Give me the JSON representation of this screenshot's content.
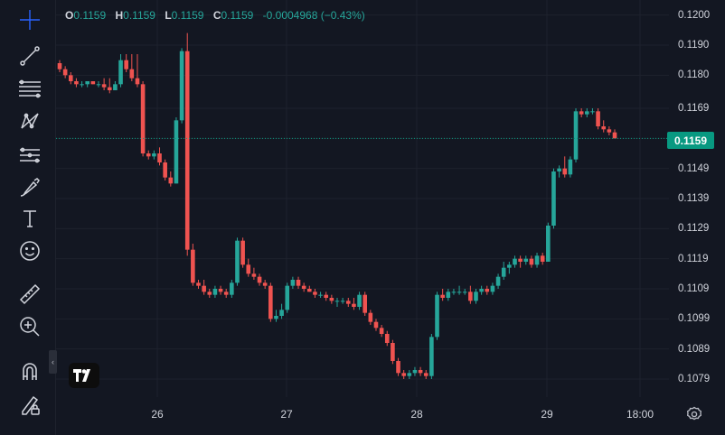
{
  "ohlc": {
    "o_label": "O",
    "o_value": "0.1159",
    "h_label": "H",
    "h_value": "0.1159",
    "l_label": "L",
    "l_value": "0.1159",
    "c_label": "C",
    "c_value": "0.1159",
    "change": "-0.0004968 (−0.43%)"
  },
  "price_axis": {
    "labels": [
      "0.1200",
      "0.1190",
      "0.1180",
      "0.1169",
      "0.1159",
      "0.1149",
      "0.1139",
      "0.1129",
      "0.1119",
      "0.1109",
      "0.1099",
      "0.1089",
      "0.1079"
    ],
    "current_price": "0.1159"
  },
  "time_axis": {
    "labels": [
      "26",
      "27",
      "28",
      "29",
      "18:00"
    ]
  },
  "toolbar": {
    "icons": [
      "crosshair-icon",
      "trend-line-icon",
      "fib-retracement-icon",
      "pattern-icon",
      "prediction-icon",
      "brush-icon",
      "text-icon",
      "emoji-icon",
      "ruler-icon",
      "zoom-in-icon",
      "magnet-icon",
      "lock-drawings-icon"
    ]
  },
  "colors": {
    "up": "#26a69a",
    "down": "#ef5350",
    "background": "#131722",
    "grid": "#1e222d",
    "price_line": "#089981"
  },
  "chart_data": {
    "type": "candlestick",
    "title": "",
    "ylim": [
      0.1073,
      0.1205
    ],
    "x_ticks": [
      "26",
      "27",
      "28",
      "29",
      "18:00"
    ],
    "candles": [
      [
        0.1184,
        0.1185,
        0.1181,
        0.1182
      ],
      [
        0.1182,
        0.1183,
        0.1179,
        0.118
      ],
      [
        0.118,
        0.1181,
        0.1177,
        0.1178
      ],
      [
        0.1178,
        0.1179,
        0.1176,
        0.1177
      ],
      [
        0.1177,
        0.1178,
        0.1176,
        0.1177
      ],
      [
        0.1177,
        0.1178,
        0.1176,
        0.1178
      ],
      [
        0.1178,
        0.1178,
        0.1177,
        0.1177
      ],
      [
        0.1177,
        0.1178,
        0.1176,
        0.1177
      ],
      [
        0.1177,
        0.1179,
        0.1175,
        0.1176
      ],
      [
        0.1176,
        0.1179,
        0.1174,
        0.1175
      ],
      [
        0.1175,
        0.1178,
        0.1175,
        0.1177
      ],
      [
        0.1177,
        0.1187,
        0.1176,
        0.1185
      ],
      [
        0.1185,
        0.1187,
        0.1181,
        0.1182
      ],
      [
        0.1182,
        0.1187,
        0.1178,
        0.1179
      ],
      [
        0.1179,
        0.1187,
        0.1176,
        0.1177
      ],
      [
        0.1177,
        0.1178,
        0.1153,
        0.1154
      ],
      [
        0.1154,
        0.1155,
        0.1152,
        0.1153
      ],
      [
        0.1153,
        0.1155,
        0.1152,
        0.1154
      ],
      [
        0.1154,
        0.1156,
        0.115,
        0.1151
      ],
      [
        0.1151,
        0.1152,
        0.1145,
        0.1146
      ],
      [
        0.1146,
        0.1148,
        0.1143,
        0.1144
      ],
      [
        0.1144,
        0.1166,
        0.1144,
        0.1165
      ],
      [
        0.1165,
        0.1189,
        0.1164,
        0.1188
      ],
      [
        0.1188,
        0.1194,
        0.112,
        0.1122
      ],
      [
        0.1122,
        0.1124,
        0.111,
        0.1111
      ],
      [
        0.1111,
        0.1112,
        0.1109,
        0.111
      ],
      [
        0.111,
        0.1112,
        0.1107,
        0.1108
      ],
      [
        0.1108,
        0.1109,
        0.1106,
        0.1107
      ],
      [
        0.1107,
        0.111,
        0.1106,
        0.1109
      ],
      [
        0.1109,
        0.111,
        0.1107,
        0.1108
      ],
      [
        0.1108,
        0.1109,
        0.1106,
        0.1107
      ],
      [
        0.1107,
        0.1112,
        0.1106,
        0.1111
      ],
      [
        0.1111,
        0.1126,
        0.111,
        0.1125
      ],
      [
        0.1125,
        0.1126,
        0.1116,
        0.1117
      ],
      [
        0.1117,
        0.1119,
        0.1113,
        0.1114
      ],
      [
        0.1114,
        0.1116,
        0.1112,
        0.1113
      ],
      [
        0.1113,
        0.1114,
        0.111,
        0.1111
      ],
      [
        0.1111,
        0.1112,
        0.1109,
        0.111
      ],
      [
        0.111,
        0.1111,
        0.1098,
        0.1099
      ],
      [
        0.1099,
        0.1102,
        0.1098,
        0.11
      ],
      [
        0.11,
        0.1104,
        0.1099,
        0.1102
      ],
      [
        0.1102,
        0.1111,
        0.1101,
        0.111
      ],
      [
        0.111,
        0.1113,
        0.1109,
        0.1112
      ],
      [
        0.1112,
        0.1113,
        0.1109,
        0.111
      ],
      [
        0.111,
        0.1111,
        0.1108,
        0.1109
      ],
      [
        0.1109,
        0.111,
        0.1108,
        0.1108
      ],
      [
        0.1108,
        0.1109,
        0.1106,
        0.1107
      ],
      [
        0.1107,
        0.1108,
        0.1106,
        0.1107
      ],
      [
        0.1107,
        0.1108,
        0.1105,
        0.1106
      ],
      [
        0.1106,
        0.1107,
        0.1104,
        0.1105
      ],
      [
        0.1105,
        0.1106,
        0.1103,
        0.1105
      ],
      [
        0.1105,
        0.1106,
        0.1104,
        0.1105
      ],
      [
        0.1105,
        0.1106,
        0.1103,
        0.1104
      ],
      [
        0.1104,
        0.1106,
        0.1102,
        0.1103
      ],
      [
        0.1103,
        0.1108,
        0.1102,
        0.1107
      ],
      [
        0.1107,
        0.1108,
        0.11,
        0.1101
      ],
      [
        0.1101,
        0.1102,
        0.1097,
        0.1098
      ],
      [
        0.1098,
        0.1099,
        0.1095,
        0.1096
      ],
      [
        0.1096,
        0.1097,
        0.1093,
        0.1094
      ],
      [
        0.1094,
        0.1095,
        0.109,
        0.1091
      ],
      [
        0.1091,
        0.1092,
        0.1084,
        0.1085
      ],
      [
        0.1085,
        0.1086,
        0.108,
        0.1081
      ],
      [
        0.1081,
        0.1082,
        0.1079,
        0.108
      ],
      [
        0.108,
        0.1082,
        0.1079,
        0.1081
      ],
      [
        0.1081,
        0.1083,
        0.108,
        0.1082
      ],
      [
        0.1082,
        0.1083,
        0.108,
        0.1081
      ],
      [
        0.1081,
        0.1082,
        0.1079,
        0.108
      ],
      [
        0.108,
        0.1094,
        0.1079,
        0.1093
      ],
      [
        0.1093,
        0.1108,
        0.1092,
        0.1107
      ],
      [
        0.1107,
        0.1109,
        0.1105,
        0.1106
      ],
      [
        0.1106,
        0.1109,
        0.1105,
        0.1108
      ],
      [
        0.1108,
        0.1109,
        0.1107,
        0.1108
      ],
      [
        0.1108,
        0.111,
        0.1107,
        0.1108
      ],
      [
        0.1108,
        0.1109,
        0.1107,
        0.1108
      ],
      [
        0.1108,
        0.111,
        0.1104,
        0.1105
      ],
      [
        0.1105,
        0.1109,
        0.1104,
        0.1108
      ],
      [
        0.1108,
        0.111,
        0.1107,
        0.1109
      ],
      [
        0.1109,
        0.111,
        0.1107,
        0.1108
      ],
      [
        0.1108,
        0.1111,
        0.1107,
        0.111
      ],
      [
        0.111,
        0.1114,
        0.1109,
        0.1113
      ],
      [
        0.1113,
        0.1118,
        0.1112,
        0.1116
      ],
      [
        0.1116,
        0.1118,
        0.1114,
        0.1117
      ],
      [
        0.1117,
        0.112,
        0.1116,
        0.1119
      ],
      [
        0.1119,
        0.112,
        0.1116,
        0.1118
      ],
      [
        0.1118,
        0.112,
        0.1117,
        0.1119
      ],
      [
        0.1119,
        0.112,
        0.1116,
        0.1117
      ],
      [
        0.1117,
        0.1121,
        0.1116,
        0.112
      ],
      [
        0.112,
        0.1121,
        0.1117,
        0.1118
      ],
      [
        0.1118,
        0.1131,
        0.1118,
        0.113
      ],
      [
        0.113,
        0.1149,
        0.1129,
        0.1148
      ],
      [
        0.1148,
        0.115,
        0.1146,
        0.1149
      ],
      [
        0.1149,
        0.1153,
        0.1146,
        0.1147
      ],
      [
        0.1147,
        0.1153,
        0.1146,
        0.1152
      ],
      [
        0.1152,
        0.1169,
        0.1151,
        0.1168
      ],
      [
        0.1168,
        0.1169,
        0.1166,
        0.1167
      ],
      [
        0.1167,
        0.1169,
        0.1166,
        0.1168
      ],
      [
        0.1168,
        0.1169,
        0.1167,
        0.1168
      ],
      [
        0.1168,
        0.1169,
        0.1162,
        0.1163
      ],
      [
        0.1163,
        0.1165,
        0.1161,
        0.1162
      ],
      [
        0.1162,
        0.1163,
        0.116,
        0.1161
      ],
      [
        0.1161,
        0.1162,
        0.1159,
        0.1159
      ]
    ]
  }
}
